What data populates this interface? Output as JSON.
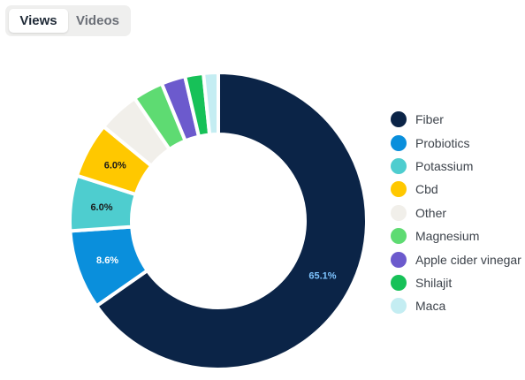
{
  "tabs": [
    {
      "label": "Views",
      "active": true
    },
    {
      "label": "Videos",
      "active": false
    }
  ],
  "chart_data": {
    "type": "pie",
    "donut": true,
    "categories": [
      "Fiber",
      "Probiotics",
      "Potassium",
      "Cbd",
      "Other",
      "Magnesium",
      "Apple cider vinegar",
      "Shilajit",
      "Maca"
    ],
    "values": [
      65.1,
      8.6,
      6.0,
      6.0,
      4.5,
      3.3,
      2.6,
      2.0,
      1.6
    ],
    "data_labels": [
      "65.1%",
      "8.6%",
      "6.0%",
      "6.0%",
      "",
      "",
      "",
      "",
      ""
    ],
    "colors": [
      "#0b2447",
      "#0a8fdc",
      "#4ecdcf",
      "#ffc800",
      "#f1efea",
      "#5edb72",
      "#6c5acd",
      "#17c158",
      "#c4edf2"
    ],
    "label_colors": [
      "#7ec4ff",
      "#ffffff",
      "#1a1a1a",
      "#1a1a1a",
      "",
      "",
      "",
      "",
      ""
    ],
    "legend_position": "right"
  }
}
